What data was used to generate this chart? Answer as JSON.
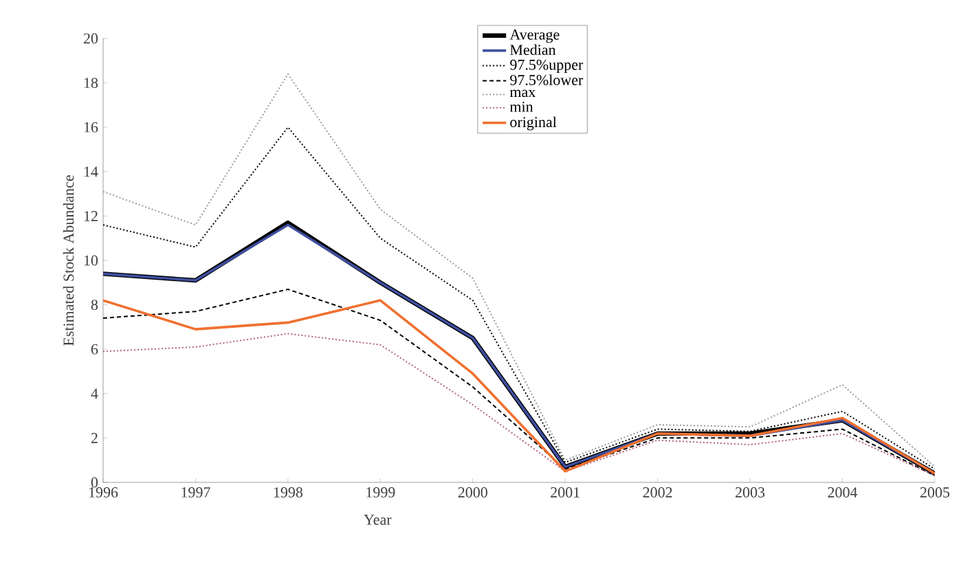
{
  "chart_data": {
    "type": "line",
    "xlabel": "Year",
    "ylabel": "Estimated Stock Abundance",
    "categories": [
      "1996",
      "1997",
      "1998",
      "1999",
      "2000",
      "2001",
      "2002",
      "2003",
      "2004",
      "2005"
    ],
    "ylim": [
      0,
      20
    ],
    "yticks": [
      0,
      2,
      4,
      6,
      8,
      10,
      12,
      14,
      16,
      18,
      20
    ],
    "grid": false,
    "legend": "top right",
    "marker": "none",
    "series": [
      {
        "name": "Average",
        "color": "#000000",
        "line_style": "solid",
        "values": [
          9.4,
          9.1,
          11.7,
          9.0,
          6.5,
          0.7,
          2.2,
          2.2,
          2.8,
          0.4
        ]
      },
      {
        "name": "Median",
        "color": "#3f4fa0",
        "line_style": "solid",
        "values": [
          9.4,
          9.1,
          11.6,
          9.0,
          6.5,
          0.7,
          2.2,
          2.1,
          2.8,
          0.4
        ]
      },
      {
        "name": "97.5%upper",
        "color": "#000000",
        "line_style": "dotted",
        "values": [
          11.6,
          10.6,
          16.0,
          11.0,
          8.2,
          0.9,
          2.4,
          2.3,
          3.2,
          0.6
        ]
      },
      {
        "name": "97.5%lower",
        "color": "#000000",
        "line_style": "dashed",
        "values": [
          7.4,
          7.7,
          8.7,
          7.3,
          4.3,
          0.6,
          2.0,
          2.0,
          2.4,
          0.3
        ]
      },
      {
        "name": "max",
        "color": "#999999",
        "line_style": "dotted",
        "values": [
          13.1,
          11.6,
          18.4,
          12.3,
          9.2,
          1.0,
          2.6,
          2.5,
          4.4,
          0.7
        ]
      },
      {
        "name": "min",
        "color": "#b06080",
        "line_style": "dotted",
        "values": [
          5.9,
          6.1,
          6.7,
          6.2,
          3.5,
          0.5,
          1.9,
          1.7,
          2.2,
          0.3
        ]
      },
      {
        "name": "original",
        "color": "#f07030",
        "line_style": "solid",
        "values": [
          8.2,
          6.9,
          7.2,
          8.2,
          4.9,
          0.5,
          2.2,
          2.1,
          2.9,
          0.4
        ]
      }
    ]
  }
}
